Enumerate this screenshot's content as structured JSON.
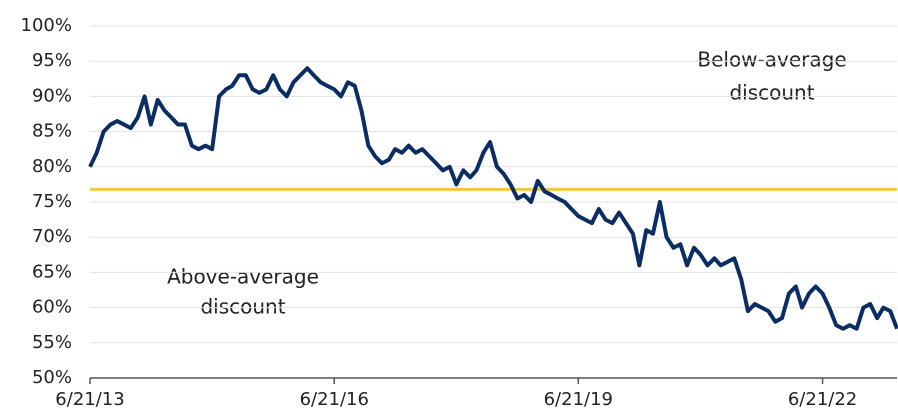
{
  "chart_data": {
    "type": "line",
    "x": [
      "6/21/13",
      "7/21/13",
      "8/21/13",
      "9/21/13",
      "10/21/13",
      "11/21/13",
      "12/21/13",
      "1/21/14",
      "2/21/14",
      "3/21/14",
      "4/21/14",
      "5/21/14",
      "6/21/14",
      "7/21/14",
      "8/21/14",
      "9/21/14",
      "10/21/14",
      "11/21/14",
      "12/21/14",
      "1/21/15",
      "2/21/15",
      "3/21/15",
      "4/21/15",
      "5/21/15",
      "6/21/15",
      "7/21/15",
      "8/21/15",
      "9/21/15",
      "10/21/15",
      "11/21/15",
      "12/21/15",
      "1/21/16",
      "2/21/16",
      "3/21/16",
      "4/21/16",
      "5/21/16",
      "6/21/16",
      "7/21/16",
      "8/21/16",
      "9/21/16",
      "10/21/16",
      "11/21/16",
      "12/21/16",
      "1/21/17",
      "2/21/17",
      "3/21/17",
      "4/21/17",
      "5/21/17",
      "6/21/17",
      "7/21/17",
      "8/21/17",
      "9/21/17",
      "10/21/17",
      "11/21/17",
      "12/21/17",
      "1/21/18",
      "2/21/18",
      "3/21/18",
      "4/21/18",
      "5/21/18",
      "6/21/18",
      "7/21/18",
      "8/21/18",
      "9/21/18",
      "10/21/18",
      "11/21/18",
      "12/21/18",
      "1/21/19",
      "2/21/19",
      "3/21/19",
      "4/21/19",
      "5/21/19",
      "6/21/19",
      "7/21/19",
      "8/21/19",
      "9/21/19",
      "10/21/19",
      "11/21/19",
      "12/21/19",
      "1/21/20",
      "2/21/20",
      "3/21/20",
      "4/21/20",
      "5/21/20",
      "6/21/20",
      "7/21/20",
      "8/21/20",
      "9/21/20",
      "10/21/20",
      "11/21/20",
      "12/21/20",
      "1/21/21",
      "2/21/21",
      "3/21/21",
      "4/21/21",
      "5/21/21",
      "6/21/21",
      "7/21/21",
      "8/21/21",
      "9/21/21",
      "10/21/21",
      "11/21/21",
      "12/21/21",
      "1/21/22",
      "2/21/22",
      "3/21/22",
      "4/21/22",
      "5/21/22",
      "6/21/22",
      "7/21/22",
      "8/21/22",
      "9/21/22",
      "10/21/22",
      "11/21/22",
      "12/21/22",
      "1/21/23",
      "2/21/23",
      "3/21/23",
      "4/21/23",
      "5/21/23"
    ],
    "series": [
      {
        "color": "#0b2d63",
        "values": [
          80,
          82,
          85,
          86,
          86.5,
          86,
          85.5,
          87,
          90,
          86,
          89.5,
          88,
          87,
          86,
          86,
          83,
          82.5,
          83,
          82.5,
          90,
          91,
          91.5,
          93,
          93,
          91,
          90.5,
          91,
          93,
          91,
          90,
          92,
          93,
          94,
          93,
          92,
          91.5,
          91,
          90,
          92,
          91.5,
          88,
          83,
          81.5,
          80.5,
          81,
          82.5,
          82,
          83,
          82,
          82.5,
          81.5,
          80.5,
          79.5,
          80,
          77.5,
          79.5,
          78.5,
          79.5,
          82,
          83.5,
          80,
          79,
          77.5,
          75.5,
          76,
          75,
          78,
          76.5,
          76,
          75.5,
          75,
          74,
          73,
          72.5,
          72,
          74,
          72.5,
          72,
          73.5,
          72,
          70.5,
          66,
          71,
          70.5,
          75,
          70,
          68.5,
          69,
          66,
          68.5,
          67.5,
          66,
          67,
          66,
          66.5,
          67,
          64,
          59.5,
          60.5,
          60,
          59.5,
          58,
          58.5,
          62,
          63,
          60,
          62,
          63,
          62,
          60,
          57.5,
          57,
          57.5,
          57,
          60,
          60.5,
          58.5,
          60,
          59.5,
          57
        ]
      }
    ],
    "average": {
      "value": 76.8,
      "color": "#f5c842"
    },
    "annotations": [
      {
        "lines": [
          "Below-average",
          "discount"
        ]
      },
      {
        "lines": [
          "Above-average",
          "discount"
        ]
      }
    ],
    "xlim": [
      "6/21/13",
      "5/21/23"
    ],
    "xticks": [
      "6/21/13",
      "6/21/16",
      "6/21/19",
      "6/21/22"
    ],
    "ylim": [
      50,
      100
    ],
    "yticks": [
      {
        "value": 50,
        "label": "50%"
      },
      {
        "value": 55,
        "label": "55%"
      },
      {
        "value": 60,
        "label": "60%"
      },
      {
        "value": 65,
        "label": "65%"
      },
      {
        "value": 70,
        "label": "70%"
      },
      {
        "value": 75,
        "label": "75%"
      },
      {
        "value": 80,
        "label": "80%"
      },
      {
        "value": 85,
        "label": "85%"
      },
      {
        "value": 90,
        "label": "90%"
      },
      {
        "value": 95,
        "label": "95%"
      },
      {
        "value": 100,
        "label": "100%"
      }
    ],
    "grid": true
  }
}
